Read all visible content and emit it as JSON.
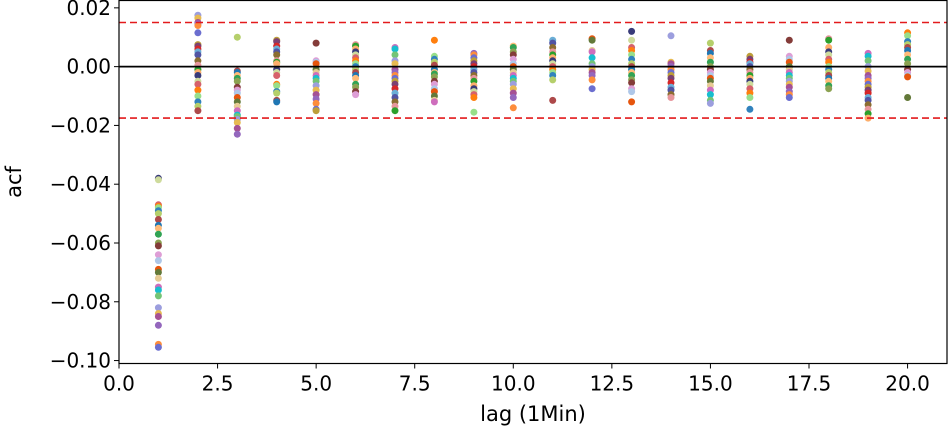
{
  "chart_data": {
    "type": "scatter",
    "title": "",
    "xlabel": "lag (1Min)",
    "ylabel": "acf",
    "xlim": [
      0.0,
      21.0
    ],
    "ylim": [
      -0.101,
      0.0225
    ],
    "xticks": [
      0.0,
      2.5,
      5.0,
      7.5,
      10.0,
      12.5,
      15.0,
      17.5,
      20.0
    ],
    "xtick_labels": [
      "0.0",
      "2.5",
      "5.0",
      "7.5",
      "10.0",
      "12.5",
      "15.0",
      "17.5",
      "20.0"
    ],
    "yticks": [
      0.02,
      0.0,
      -0.02,
      -0.04,
      -0.06,
      -0.08,
      -0.1
    ],
    "ytick_labels": [
      "0.02",
      "0.00",
      "−0.02",
      "−0.04",
      "−0.06",
      "−0.08",
      "−0.10"
    ],
    "grid": false,
    "legend": "none",
    "reference_lines": [
      {
        "y": 0.0,
        "color": "#000000",
        "style": "solid"
      },
      {
        "y": 0.015,
        "color": "#e31a1c",
        "style": "dashed"
      },
      {
        "y": -0.0175,
        "color": "#e31a1c",
        "style": "dashed"
      }
    ],
    "palette": [
      "#393b79",
      "#5254a3",
      "#6b6ecf",
      "#9c9ede",
      "#637939",
      "#8ca252",
      "#b5cf6b",
      "#cedb9c",
      "#8c6d31",
      "#bd9e39",
      "#e7ba52",
      "#e7cb94",
      "#843c39",
      "#ad494a",
      "#d6616b",
      "#e7969c",
      "#7b4173",
      "#a55194",
      "#ce6dbd",
      "#de9ed6",
      "#1f77b4",
      "#ff7f0e",
      "#2ca02c",
      "#d62728",
      "#9467bd",
      "#17becf",
      "#aec7e8",
      "#ffbb78",
      "#98df8a",
      "#fdae6b",
      "#6baed6",
      "#fd8d3c",
      "#74c476",
      "#e6550d",
      "#31a354",
      "#3182bd"
    ],
    "points": [
      {
        "x": 1,
        "y": [
          -0.038,
          -0.0385,
          -0.047,
          -0.0475,
          -0.048,
          -0.049,
          -0.05,
          -0.052,
          -0.054,
          -0.055,
          -0.057,
          -0.06,
          -0.061,
          -0.064,
          -0.066,
          -0.069,
          -0.07,
          -0.072,
          -0.075,
          -0.076,
          -0.078,
          -0.082,
          -0.084,
          -0.085,
          -0.088,
          -0.0945,
          -0.0955
        ]
      },
      {
        "x": 2,
        "y": [
          0.0175,
          0.0165,
          0.015,
          0.0145,
          0.014,
          0.0115,
          0.0075,
          0.007,
          0.006,
          0.005,
          0.004,
          0.002,
          0.0005,
          -0.001,
          -0.002,
          -0.003,
          -0.005,
          -0.006,
          -0.008,
          -0.01,
          -0.012,
          -0.0135,
          -0.015
        ]
      },
      {
        "x": 3,
        "y": [
          0.01,
          -0.0015,
          -0.002,
          -0.003,
          -0.004,
          -0.005,
          -0.007,
          -0.008,
          -0.009,
          -0.0105,
          -0.012,
          -0.0135,
          -0.015,
          -0.0165,
          -0.017,
          -0.018,
          -0.019,
          -0.021,
          -0.023
        ]
      },
      {
        "x": 4,
        "y": [
          0.009,
          0.0085,
          0.007,
          0.006,
          0.005,
          0.004,
          0.002,
          0.0015,
          0.001,
          -0.001,
          -0.002,
          -0.003,
          -0.006,
          -0.0065,
          -0.0085,
          -0.009,
          -0.0115,
          -0.012
        ]
      },
      {
        "x": 5,
        "y": [
          0.008,
          0.002,
          0.0015,
          0.001,
          -0.001,
          -0.002,
          -0.003,
          -0.004,
          -0.005,
          -0.0065,
          -0.008,
          -0.0095,
          -0.011,
          -0.0125,
          -0.0145,
          -0.015
        ]
      },
      {
        "x": 6,
        "y": [
          0.0075,
          0.007,
          0.006,
          0.005,
          0.004,
          0.003,
          0.002,
          0.001,
          0.0,
          -0.001,
          -0.002,
          -0.003,
          -0.004,
          -0.006,
          -0.007,
          -0.0085,
          -0.0095
        ]
      },
      {
        "x": 7,
        "y": [
          0.0065,
          0.006,
          0.004,
          0.002,
          0.001,
          -0.001,
          -0.002,
          -0.003,
          -0.004,
          -0.005,
          -0.006,
          -0.0075,
          -0.009,
          -0.0105,
          -0.012,
          -0.0135,
          -0.015
        ]
      },
      {
        "x": 8,
        "y": [
          0.009,
          0.0035,
          0.0025,
          0.0015,
          0.0005,
          -0.001,
          -0.002,
          -0.0025,
          -0.0035,
          -0.005,
          -0.006,
          -0.0075,
          -0.0085,
          -0.01,
          -0.0115,
          -0.012
        ]
      },
      {
        "x": 9,
        "y": [
          0.0045,
          0.004,
          0.003,
          0.002,
          0.001,
          0.0,
          -0.001,
          -0.002,
          -0.003,
          -0.004,
          -0.005,
          -0.0065,
          -0.0075,
          -0.0085,
          -0.0095,
          -0.0105,
          -0.0155
        ]
      },
      {
        "x": 10,
        "y": [
          0.007,
          0.0065,
          0.005,
          0.004,
          0.0025,
          0.001,
          0.0,
          -0.001,
          -0.002,
          -0.003,
          -0.004,
          -0.005,
          -0.006,
          -0.0075,
          -0.009,
          -0.0105,
          -0.014
        ]
      },
      {
        "x": 11,
        "y": [
          0.009,
          0.008,
          0.0065,
          0.005,
          0.004,
          0.003,
          0.002,
          0.001,
          0.0,
          -0.001,
          -0.002,
          -0.003,
          -0.0045,
          -0.0115
        ]
      },
      {
        "x": 12,
        "y": [
          0.0095,
          0.009,
          0.0055,
          0.005,
          0.003,
          0.001,
          0.0,
          -0.001,
          -0.002,
          -0.003,
          -0.0045,
          -0.0075
        ]
      },
      {
        "x": 13,
        "y": [
          0.012,
          0.009,
          0.0065,
          0.0055,
          0.004,
          0.0025,
          0.001,
          0.0,
          -0.001,
          -0.002,
          -0.003,
          -0.0045,
          -0.0055,
          -0.0075,
          -0.0085,
          -0.012
        ]
      },
      {
        "x": 14,
        "y": [
          0.0105,
          0.0015,
          0.001,
          0.0,
          -0.001,
          -0.002,
          -0.003,
          -0.004,
          -0.0055,
          -0.007,
          -0.008,
          -0.0095,
          -0.0105
        ]
      },
      {
        "x": 15,
        "y": [
          0.008,
          0.0055,
          0.0045,
          0.003,
          0.0015,
          0.0,
          -0.001,
          -0.002,
          -0.003,
          -0.004,
          -0.005,
          -0.0065,
          -0.008,
          -0.0095,
          -0.0115,
          -0.0125
        ]
      },
      {
        "x": 16,
        "y": [
          0.0035,
          0.0025,
          0.0015,
          0.001,
          0.0,
          -0.001,
          -0.002,
          -0.003,
          -0.004,
          -0.005,
          -0.006,
          -0.0075,
          -0.009,
          -0.0105,
          -0.0145
        ]
      },
      {
        "x": 17,
        "y": [
          0.009,
          0.0035,
          0.0025,
          0.0015,
          0.0,
          -0.001,
          -0.002,
          -0.003,
          -0.004,
          -0.005,
          -0.006,
          -0.007,
          -0.0085,
          -0.0095,
          -0.0105
        ]
      },
      {
        "x": 18,
        "y": [
          0.0095,
          0.009,
          0.0065,
          0.005,
          0.004,
          0.0025,
          0.0015,
          0.0,
          -0.001,
          -0.002,
          -0.003,
          -0.004,
          -0.005,
          -0.0065,
          -0.0075
        ]
      },
      {
        "x": 19,
        "y": [
          0.0045,
          0.0035,
          0.002,
          0.0,
          -0.0015,
          -0.003,
          -0.004,
          -0.005,
          -0.006,
          -0.007,
          -0.008,
          -0.009,
          -0.0105,
          -0.0115,
          -0.013,
          -0.0145,
          -0.016,
          -0.0175
        ]
      },
      {
        "x": 20,
        "y": [
          0.0115,
          0.0105,
          0.0085,
          0.0075,
          0.0065,
          0.0055,
          0.004,
          0.0025,
          0.001,
          -0.001,
          -0.002,
          -0.003,
          -0.0035,
          -0.0105
        ]
      }
    ]
  }
}
